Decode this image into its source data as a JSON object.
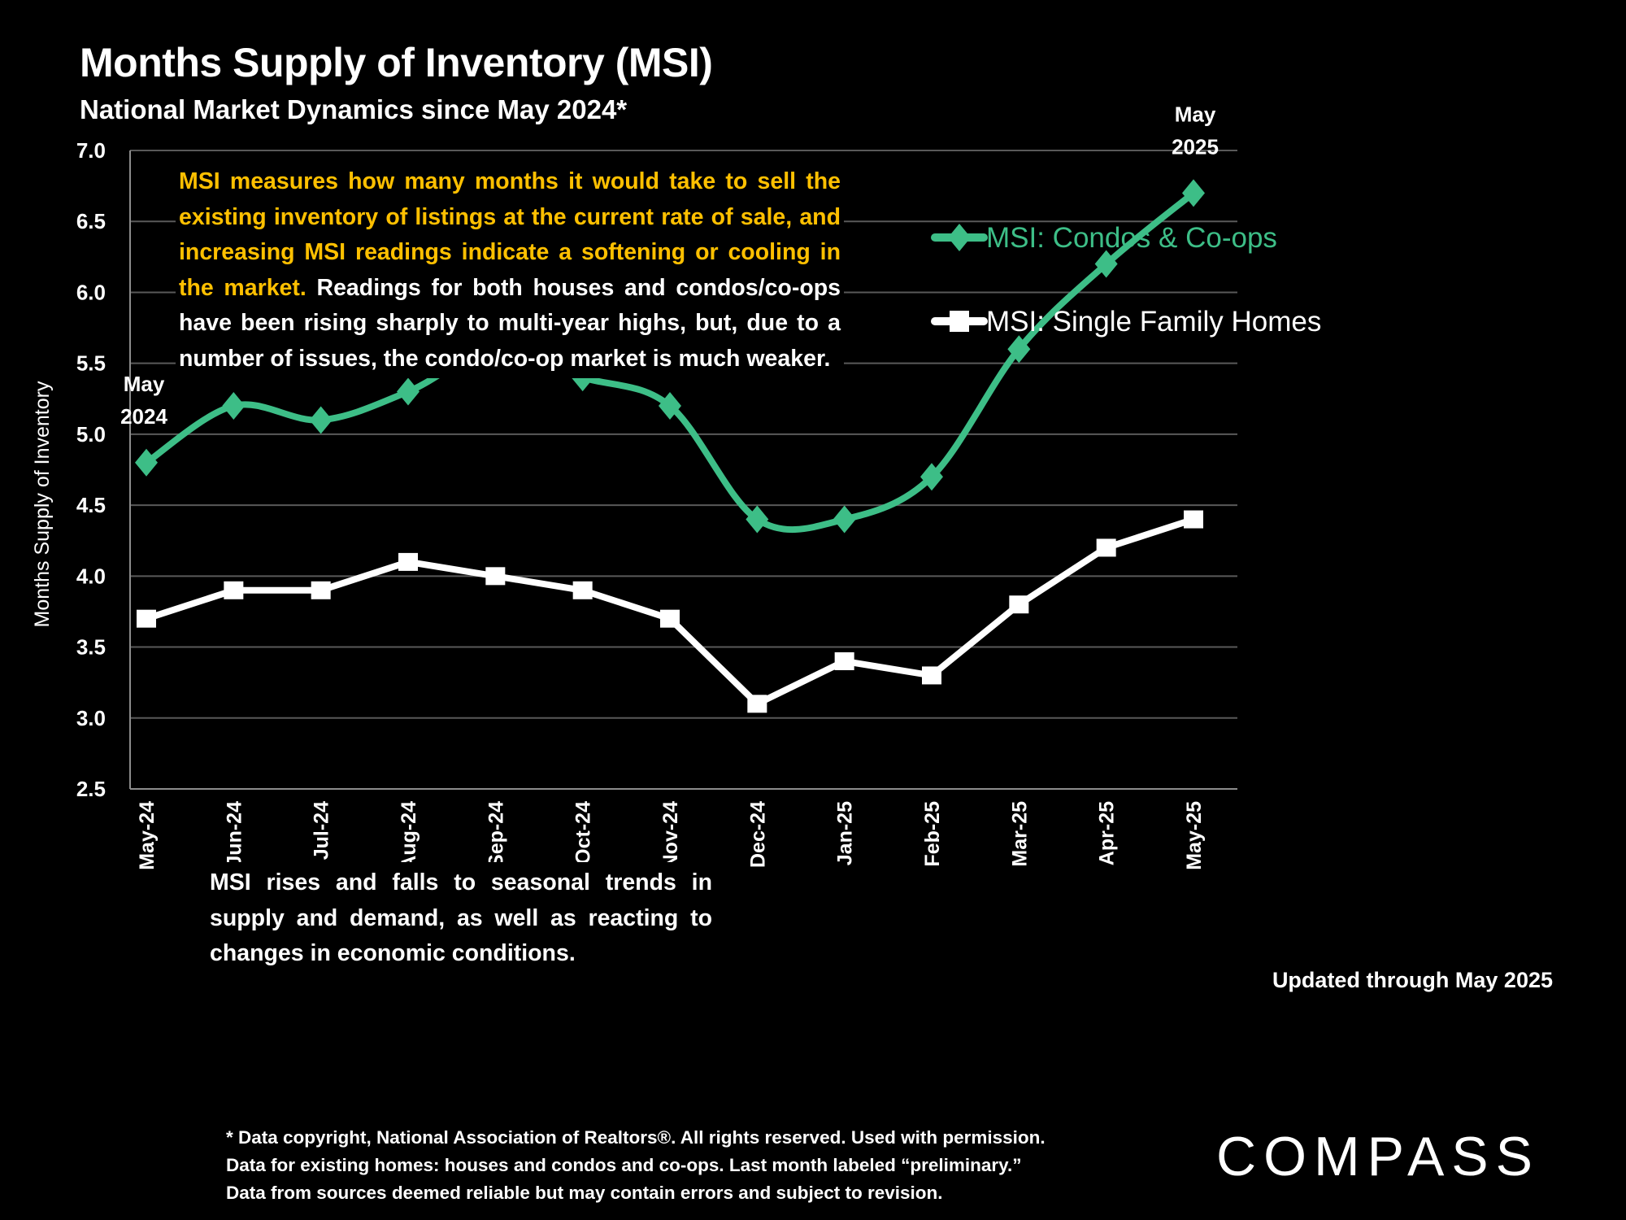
{
  "header": {
    "title": "Months Supply of Inventory (MSI)",
    "subtitle": "National Market Dynamics since May 2024*"
  },
  "info_box": {
    "highlight": "MSI measures how many months it would take to sell the existing inventory of listings at the current rate of sale, and increasing MSI readings indicate a softening or cooling in the market.",
    "body": " Readings for both houses and condos/co-ops have been rising sharply to multi-year highs, but, due to a number of issues, the condo/co-op market is much weaker."
  },
  "season_box": "MSI rises and falls to seasonal trends in supply and demand, as well as reacting to changes in economic conditions.",
  "updated_note": "Updated through May 2025",
  "footnote": {
    "line1": "* Data copyright, National Association of Realtors®. All rights reserved. Used with permission.",
    "line2": "Data for existing homes: houses and condos and co-ops. Last month labeled “preliminary.”",
    "line3": "Data from sources deemed reliable but may contain errors and subject to revision."
  },
  "logo": "COMPASS",
  "colors": {
    "condos": "#3DBE87",
    "sfh": "#FFFFFF",
    "highlight": "#FFC000",
    "grid": "#595959"
  },
  "chart_data": {
    "type": "line",
    "title": "Months Supply of Inventory (MSI)",
    "subtitle": "National Market Dynamics since May 2024*",
    "xlabel": "",
    "ylabel": "Months Supply of Inventory",
    "ylim": [
      2.5,
      7.0
    ],
    "yticks": [
      "2.5",
      "3.0",
      "3.5",
      "4.0",
      "4.5",
      "5.0",
      "5.5",
      "6.0",
      "6.5",
      "7.0"
    ],
    "grid": true,
    "legend_position": "top-right",
    "categories": [
      "May-24",
      "Jun-24",
      "Jul-24",
      "Aug-24",
      "Sep-24",
      "Oct-24",
      "Nov-24",
      "Dec-24",
      "Jan-25",
      "Feb-25",
      "Mar-25",
      "Apr-25",
      "May-25"
    ],
    "series": [
      {
        "name": "MSI:  Condos & Co-ops",
        "marker": "diamond",
        "smooth": true,
        "values": [
          4.8,
          5.2,
          5.1,
          5.3,
          5.6,
          5.4,
          5.2,
          4.4,
          4.4,
          4.7,
          5.6,
          6.2,
          6.7
        ]
      },
      {
        "name": "MSI:  Single Family Homes",
        "marker": "square",
        "smooth": false,
        "values": [
          3.7,
          3.9,
          3.9,
          4.1,
          4.0,
          3.9,
          3.7,
          3.1,
          3.4,
          3.3,
          3.8,
          4.2,
          4.4
        ]
      }
    ],
    "annotations": [
      {
        "text": [
          "May",
          "2024"
        ],
        "category": "May-24",
        "series": 0,
        "place": "above"
      },
      {
        "text": [
          "May",
          "2025"
        ],
        "category": "May-25",
        "series": 0,
        "place": "above"
      }
    ]
  }
}
